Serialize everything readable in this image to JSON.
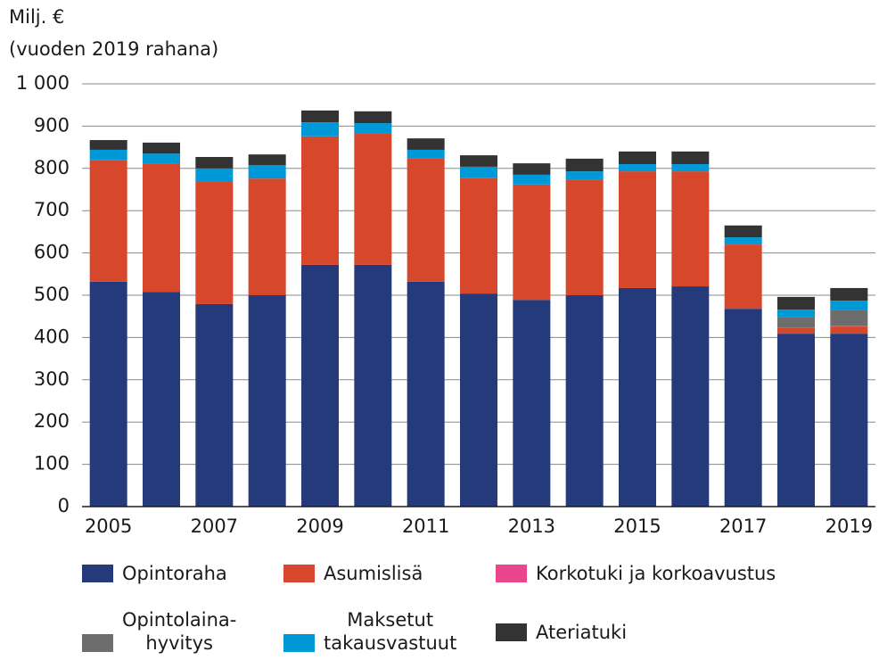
{
  "chart_data": {
    "type": "stacked_bar",
    "y_label": [
      "Milj. €",
      "(vuoden 2019 rahana)"
    ],
    "categories": [
      "2005",
      null,
      "2007",
      null,
      "2009",
      null,
      "2011",
      null,
      "2013",
      null,
      "2015",
      null,
      "2017",
      null,
      "2019"
    ],
    "series": [
      {
        "name": "Opintoraha",
        "color": "#253a7a",
        "values": [
          532,
          508,
          479,
          500,
          572,
          572,
          532,
          504,
          489,
          500,
          517,
          521,
          468,
          409,
          409
        ]
      },
      {
        "name": "Asumislisä",
        "color": "#d6472b",
        "values": [
          287,
          304,
          289,
          276,
          304,
          310,
          291,
          274,
          273,
          274,
          276,
          272,
          152,
          13,
          17
        ]
      },
      {
        "name": "Korkotuki ja korkoavustus",
        "color": "#e9468b",
        "values": [
          0,
          0,
          0,
          0,
          0,
          0,
          0,
          0,
          0,
          0,
          0,
          0,
          0,
          2,
          2
        ]
      },
      {
        "name": "Opintolaina-\nhyvitys",
        "color": "#6d6d6d",
        "values": [
          0,
          0,
          0,
          0,
          0,
          0,
          0,
          0,
          0,
          0,
          0,
          0,
          0,
          25,
          38
        ]
      },
      {
        "name": "Maksetut\ntakausvastuut",
        "color": "#0099d8",
        "values": [
          25,
          23,
          32,
          32,
          33,
          25,
          21,
          26,
          23,
          19,
          17,
          17,
          17,
          17,
          21
        ]
      },
      {
        "name": "Ateriatuki",
        "color": "#333333",
        "values": [
          23,
          26,
          27,
          25,
          28,
          28,
          27,
          27,
          27,
          30,
          30,
          30,
          28,
          30,
          30
        ]
      }
    ],
    "ylim": [
      0,
      1000
    ],
    "yticks": [
      0,
      100,
      200,
      300,
      400,
      500,
      600,
      700,
      800,
      900,
      {
        "value": 1000,
        "label": "1 000"
      }
    ],
    "grid": true
  }
}
